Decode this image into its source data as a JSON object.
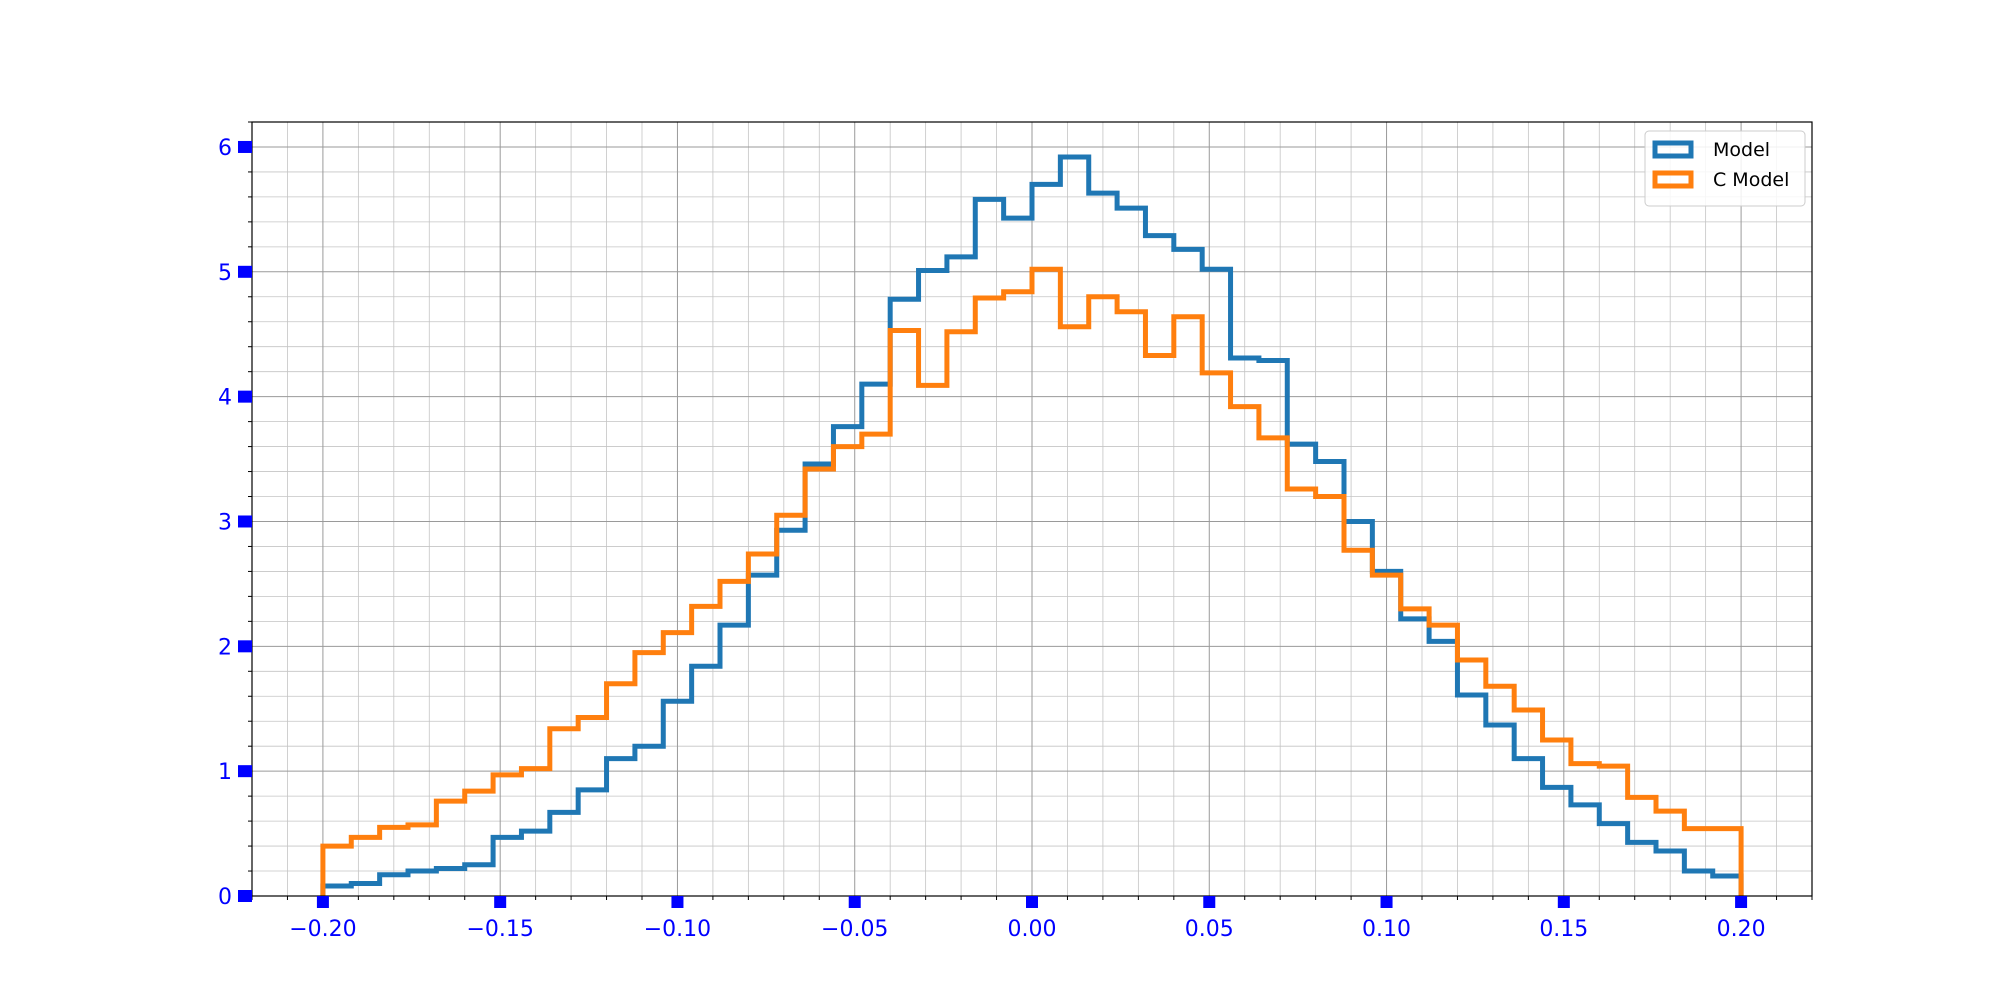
{
  "chart_data": {
    "type": "histogram",
    "title": "",
    "xlabel": "",
    "ylabel": "",
    "xlim": [
      -0.22,
      0.22
    ],
    "ylim": [
      0,
      6.2
    ],
    "grid": "major and minor",
    "legend_position": "top-right",
    "bin_edges": [
      -0.2,
      -0.192,
      -0.184,
      -0.176,
      -0.168,
      -0.16,
      -0.152,
      -0.144,
      -0.136,
      -0.128,
      -0.12,
      -0.112,
      -0.104,
      -0.096,
      -0.088,
      -0.08,
      -0.072,
      -0.064,
      -0.056,
      -0.048,
      -0.04,
      -0.032,
      -0.024,
      -0.016,
      -0.008,
      0.0,
      0.008,
      0.016,
      0.024,
      0.032,
      0.04,
      0.048,
      0.056,
      0.064,
      0.072,
      0.08,
      0.088,
      0.096,
      0.104,
      0.112,
      0.12,
      0.128,
      0.136,
      0.144,
      0.152,
      0.16,
      0.168,
      0.176,
      0.184,
      0.192,
      0.2
    ],
    "series": [
      {
        "name": "Model",
        "color": "#1f77b4",
        "values": [
          0.08,
          0.1,
          0.17,
          0.2,
          0.22,
          0.25,
          0.47,
          0.52,
          0.67,
          0.85,
          1.1,
          1.2,
          1.56,
          1.84,
          2.17,
          2.57,
          2.93,
          3.46,
          3.76,
          4.1,
          4.78,
          5.01,
          5.12,
          5.58,
          5.43,
          5.7,
          5.92,
          5.63,
          5.51,
          5.29,
          5.18,
          5.02,
          4.31,
          4.29,
          3.62,
          3.48,
          3.0,
          2.6,
          2.22,
          2.04,
          1.61,
          1.37,
          1.1,
          0.87,
          0.73,
          0.58,
          0.43,
          0.36,
          0.2,
          0.16
        ]
      },
      {
        "name": "C Model",
        "color": "#ff7f0e",
        "values": [
          0.4,
          0.47,
          0.55,
          0.57,
          0.76,
          0.84,
          0.97,
          1.02,
          1.34,
          1.43,
          1.7,
          1.95,
          2.11,
          2.32,
          2.52,
          2.74,
          3.05,
          3.42,
          3.6,
          3.7,
          4.53,
          4.09,
          4.52,
          4.79,
          4.84,
          5.02,
          4.56,
          4.8,
          4.68,
          4.33,
          4.64,
          4.19,
          3.92,
          3.67,
          3.26,
          3.2,
          2.77,
          2.57,
          2.3,
          2.17,
          1.89,
          1.68,
          1.49,
          1.25,
          1.06,
          1.04,
          0.79,
          0.68,
          0.54,
          0.54
        ]
      }
    ],
    "x_ticks": [
      {
        "value": -0.2,
        "label": "−0.20"
      },
      {
        "value": -0.15,
        "label": "−0.15"
      },
      {
        "value": -0.1,
        "label": "−0.10"
      },
      {
        "value": -0.05,
        "label": "−0.05"
      },
      {
        "value": 0.0,
        "label": "0.00"
      },
      {
        "value": 0.05,
        "label": "0.05"
      },
      {
        "value": 0.1,
        "label": "0.10"
      },
      {
        "value": 0.15,
        "label": "0.15"
      },
      {
        "value": 0.2,
        "label": "0.20"
      }
    ],
    "y_ticks": [
      {
        "value": 0,
        "label": "0"
      },
      {
        "value": 1,
        "label": "1"
      },
      {
        "value": 2,
        "label": "2"
      },
      {
        "value": 3,
        "label": "3"
      },
      {
        "value": 4,
        "label": "4"
      },
      {
        "value": 5,
        "label": "5"
      },
      {
        "value": 6,
        "label": "6"
      }
    ],
    "tick_color": "#0000ff"
  }
}
